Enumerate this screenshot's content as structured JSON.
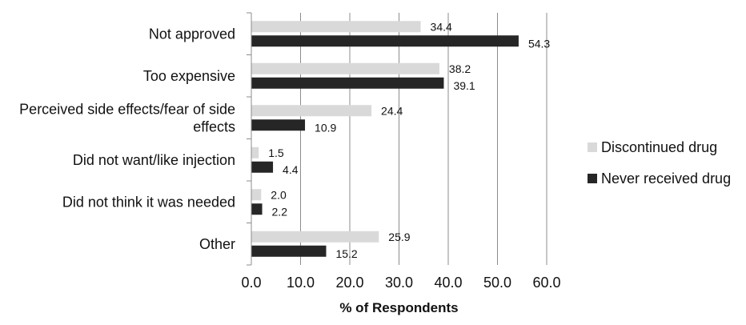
{
  "chart_data": {
    "type": "bar",
    "orientation": "horizontal",
    "categories": [
      [
        "Not approved"
      ],
      [
        "Too expensive"
      ],
      [
        "Perceived side effects/fear of side",
        "effects"
      ],
      [
        "Did not want/like injection"
      ],
      [
        "Did not think it was needed"
      ],
      [
        "Other"
      ]
    ],
    "series": [
      {
        "name": "Discontinued drug",
        "color": "#d9d9d9",
        "values": [
          34.4,
          38.2,
          24.4,
          1.5,
          2.0,
          25.9
        ]
      },
      {
        "name": "Never received drug",
        "color": "#262626",
        "values": [
          54.3,
          39.1,
          10.9,
          4.4,
          2.2,
          15.2
        ]
      }
    ],
    "xlabel": "% of Respondents",
    "xlim": [
      0,
      60
    ],
    "xticks": [
      0,
      10,
      20,
      30,
      40,
      50,
      60
    ],
    "tick_decimals": 1,
    "value_decimals": 1,
    "grid": "vertical",
    "legend_position": "right"
  }
}
